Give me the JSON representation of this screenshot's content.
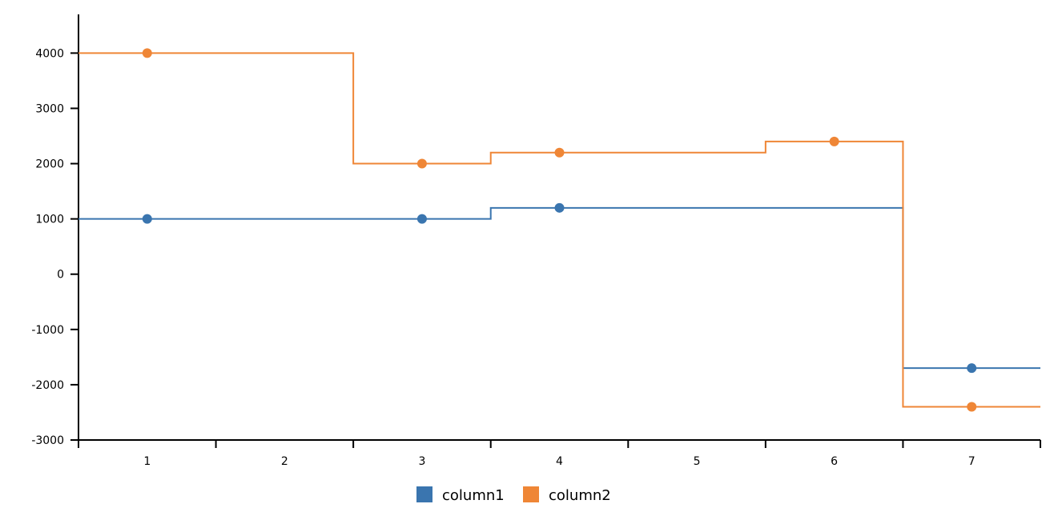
{
  "chart_data": {
    "type": "line",
    "step": "mid",
    "title": "",
    "xlabel": "",
    "ylabel": "",
    "categories": [
      "1",
      "2",
      "3",
      "4",
      "5",
      "6",
      "7"
    ],
    "x": [
      1,
      2,
      3,
      4,
      5,
      6,
      7
    ],
    "ylim": [
      -3000,
      4700
    ],
    "yticks": [
      -3000,
      -2000,
      -1000,
      0,
      1000,
      2000,
      3000,
      4000
    ],
    "series": [
      {
        "name": "column1",
        "color": "#3a75af",
        "values": [
          1000,
          null,
          1000,
          1200,
          null,
          null,
          -1700
        ]
      },
      {
        "name": "column2",
        "color": "#ef8636",
        "values": [
          4000,
          null,
          2000,
          2200,
          null,
          2400,
          -2400
        ]
      }
    ],
    "legend": "bottom",
    "grid": false
  }
}
